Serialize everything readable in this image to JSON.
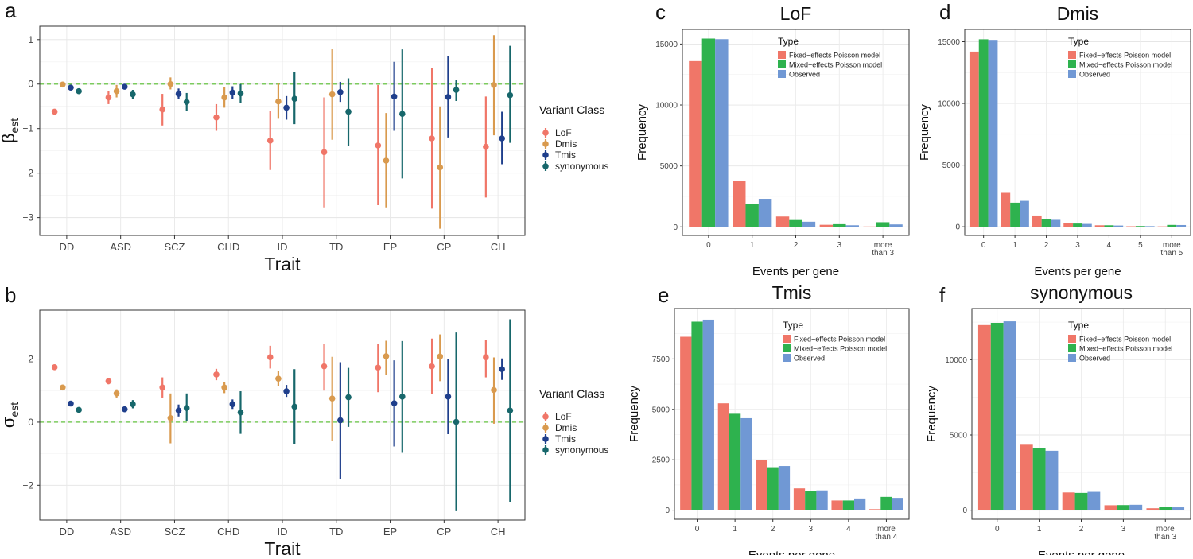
{
  "figure": {
    "colors": {
      "LoF": "#F07668",
      "Dmis": "#D99A4E",
      "Tmis": "#1F3F8C",
      "synonymous": "#17676B",
      "fixed": "#F07668",
      "mixed": "#2EB24E",
      "observed": "#7098D4",
      "refline": "#7CCB5E"
    }
  },
  "chart_data": [
    {
      "id": "a",
      "panel_label": "a",
      "type": "scatter",
      "subtype": "dot-whisker",
      "ylabel_main": "β",
      "ylabel_sub": "est",
      "xlabel": "Trait",
      "categories": [
        "DD",
        "ASD",
        "SCZ",
        "CHD",
        "ID",
        "TD",
        "EP",
        "CP",
        "CH"
      ],
      "ylim": [
        -3.4,
        1.3
      ],
      "yticks": [
        -3,
        -2,
        -1,
        0,
        1
      ],
      "ytick_labels": [
        "−3",
        "−2",
        "−1",
        "0",
        "1"
      ],
      "reference_line": 0,
      "legend": {
        "title": "Variant Class",
        "position": "right",
        "entries": [
          "LoF",
          "Dmis",
          "Tmis",
          "synonymous"
        ]
      },
      "series": [
        {
          "name": "LoF",
          "estimate": [
            -0.62,
            -0.3,
            -0.57,
            -0.75,
            -1.27,
            -1.53,
            -1.38,
            -1.22,
            -1.41
          ],
          "lower": [
            -0.68,
            -0.45,
            -0.93,
            -1.05,
            -1.93,
            -2.77,
            -2.72,
            -2.8,
            -2.55
          ],
          "upper": [
            -0.56,
            -0.15,
            -0.22,
            -0.45,
            -0.6,
            -0.3,
            -0.02,
            0.37,
            -0.28
          ]
        },
        {
          "name": "Dmis",
          "estimate": [
            -0.01,
            -0.16,
            0.0,
            -0.3,
            -0.39,
            -0.23,
            -1.72,
            -1.87,
            -0.02
          ],
          "lower": [
            -0.05,
            -0.3,
            -0.12,
            -0.53,
            -0.78,
            -1.25,
            -2.77,
            -3.25,
            -1.15
          ],
          "upper": [
            0.03,
            -0.02,
            0.15,
            -0.07,
            0.03,
            0.79,
            -0.65,
            -0.5,
            1.1
          ]
        },
        {
          "name": "Tmis",
          "estimate": [
            -0.08,
            -0.06,
            -0.22,
            -0.19,
            -0.53,
            -0.18,
            -0.28,
            -0.29,
            -1.22
          ],
          "lower": [
            -0.14,
            -0.12,
            -0.33,
            -0.33,
            -0.8,
            -0.4,
            -1.05,
            -1.2,
            -1.8
          ],
          "upper": [
            -0.02,
            0.0,
            -0.1,
            -0.05,
            -0.27,
            0.05,
            0.5,
            0.63,
            -0.62
          ]
        },
        {
          "name": "synonymous",
          "estimate": [
            -0.16,
            -0.23,
            -0.4,
            -0.21,
            -0.33,
            -0.62,
            -0.67,
            -0.13,
            -0.25
          ],
          "lower": [
            -0.21,
            -0.33,
            -0.6,
            -0.42,
            -0.9,
            -1.38,
            -2.12,
            -0.38,
            -1.32
          ],
          "upper": [
            -0.11,
            -0.13,
            -0.2,
            0.0,
            0.27,
            0.13,
            0.78,
            0.1,
            0.86
          ]
        }
      ]
    },
    {
      "id": "b",
      "panel_label": "b",
      "type": "scatter",
      "subtype": "dot-whisker",
      "ylabel_main": "σ",
      "ylabel_sub": "est",
      "xlabel": "Trait",
      "categories": [
        "DD",
        "ASD",
        "SCZ",
        "CHD",
        "ID",
        "TD",
        "EP",
        "CP",
        "CH"
      ],
      "ylim": [
        -3.1,
        3.55
      ],
      "yticks": [
        -2,
        0,
        2
      ],
      "ytick_labels": [
        "−2",
        "0",
        "2"
      ],
      "reference_line": 0,
      "legend": {
        "title": "Variant Class",
        "position": "right",
        "entries": [
          "LoF",
          "Dmis",
          "Tmis",
          "synonymous"
        ]
      },
      "series": [
        {
          "name": "LoF",
          "estimate": [
            1.74,
            1.3,
            1.1,
            1.51,
            2.06,
            1.77,
            1.73,
            1.77,
            2.06
          ],
          "lower": [
            1.68,
            1.2,
            0.78,
            1.33,
            1.7,
            1.0,
            0.95,
            0.88,
            1.42
          ],
          "upper": [
            1.8,
            1.4,
            1.42,
            1.69,
            2.42,
            2.48,
            2.48,
            2.65,
            2.6
          ]
        },
        {
          "name": "Dmis",
          "estimate": [
            1.1,
            0.91,
            0.13,
            1.1,
            1.38,
            0.75,
            2.09,
            2.08,
            1.02
          ],
          "lower": [
            1.02,
            0.78,
            -0.67,
            0.92,
            1.15,
            -0.58,
            1.5,
            1.3,
            -0.05
          ],
          "upper": [
            1.18,
            1.04,
            0.91,
            1.28,
            1.62,
            2.07,
            2.58,
            2.78,
            2.05
          ]
        },
        {
          "name": "Tmis",
          "estimate": [
            0.59,
            0.41,
            0.37,
            0.57,
            0.98,
            0.06,
            0.6,
            0.81,
            1.68
          ],
          "lower": [
            0.53,
            0.34,
            0.18,
            0.42,
            0.8,
            -1.8,
            -0.77,
            -0.38,
            1.34
          ],
          "upper": [
            0.65,
            0.48,
            0.56,
            0.72,
            1.18,
            1.9,
            1.96,
            2.0,
            2.02
          ]
        },
        {
          "name": "synonymous",
          "estimate": [
            0.39,
            0.57,
            0.45,
            0.31,
            0.49,
            0.79,
            0.81,
            0.01,
            0.37
          ],
          "lower": [
            0.33,
            0.44,
            0.03,
            -0.37,
            -0.69,
            -0.15,
            -0.97,
            -2.82,
            -2.52
          ],
          "upper": [
            0.45,
            0.7,
            0.91,
            0.98,
            1.68,
            1.72,
            2.57,
            2.84,
            3.26
          ]
        }
      ]
    },
    {
      "id": "c",
      "panel_label": "c",
      "type": "bar",
      "title": "LoF",
      "xlabel": "Events per gene",
      "ylabel": "Frequency",
      "categories": [
        "0",
        "1",
        "2",
        "3",
        "more\nthan 3"
      ],
      "ylim": [
        -700,
        16200
      ],
      "yticks": [
        0,
        5000,
        10000,
        15000
      ],
      "legend": {
        "title": "Type",
        "position": "top-right",
        "entries": [
          "Fixed−effects Poisson model",
          "Mixed−effects Poisson model",
          "Observed"
        ]
      },
      "series": [
        {
          "name": "Fixed−effects Poisson model",
          "values": [
            13600,
            3750,
            850,
            170,
            30
          ]
        },
        {
          "name": "Mixed−effects Poisson model",
          "values": [
            15450,
            1850,
            560,
            220,
            380
          ]
        },
        {
          "name": "Observed",
          "values": [
            15400,
            2300,
            420,
            130,
            200
          ]
        }
      ]
    },
    {
      "id": "d",
      "panel_label": "d",
      "type": "bar",
      "title": "Dmis",
      "xlabel": "Events per gene",
      "ylabel": "Frequency",
      "categories": [
        "0",
        "1",
        "2",
        "3",
        "4",
        "5",
        "more\nthan 5"
      ],
      "ylim": [
        -700,
        16000
      ],
      "yticks": [
        0,
        5000,
        10000,
        15000
      ],
      "legend": {
        "title": "Type",
        "position": "top-right",
        "entries": [
          "Fixed−effects Poisson model",
          "Mixed−effects Poisson model",
          "Observed"
        ]
      },
      "series": [
        {
          "name": "Fixed−effects Poisson model",
          "values": [
            14200,
            2750,
            850,
            330,
            120,
            40,
            30
          ]
        },
        {
          "name": "Mixed−effects Poisson model",
          "values": [
            15200,
            1950,
            620,
            260,
            120,
            60,
            150
          ]
        },
        {
          "name": "Observed",
          "values": [
            15150,
            2100,
            560,
            230,
            100,
            50,
            140
          ]
        }
      ]
    },
    {
      "id": "e",
      "panel_label": "e",
      "type": "bar",
      "title": "Tmis",
      "xlabel": "Events per gene",
      "ylabel": "Frequency",
      "categories": [
        "0",
        "1",
        "2",
        "3",
        "4",
        "more\nthan 4"
      ],
      "ylim": [
        -450,
        10000
      ],
      "yticks": [
        0,
        2500,
        5000,
        7500
      ],
      "legend": {
        "title": "Type",
        "position": "top-right",
        "entries": [
          "Fixed−effects Poisson model",
          "Mixed−effects Poisson model",
          "Observed"
        ]
      },
      "series": [
        {
          "name": "Fixed−effects Poisson model",
          "values": [
            8600,
            5300,
            2480,
            1080,
            480,
            50
          ]
        },
        {
          "name": "Mixed−effects Poisson model",
          "values": [
            9350,
            4780,
            2130,
            960,
            480,
            660
          ]
        },
        {
          "name": "Observed",
          "values": [
            9450,
            4560,
            2190,
            980,
            580,
            610
          ]
        }
      ]
    },
    {
      "id": "f",
      "panel_label": "f",
      "type": "bar",
      "title": "synonymous",
      "xlabel": "Events per gene",
      "ylabel": "Frequency",
      "categories": [
        "0",
        "1",
        "2",
        "3",
        "more\nthan 3"
      ],
      "ylim": [
        -600,
        13400
      ],
      "yticks": [
        0,
        5000,
        10000
      ],
      "legend": {
        "title": "Type",
        "position": "top-right",
        "entries": [
          "Fixed−effects Poisson model",
          "Mixed−effects Poisson model",
          "Observed"
        ]
      },
      "series": [
        {
          "name": "Fixed−effects Poisson model",
          "values": [
            12300,
            4350,
            1180,
            330,
            130
          ]
        },
        {
          "name": "Mixed−effects Poisson model",
          "values": [
            12450,
            4120,
            1150,
            340,
            200
          ]
        },
        {
          "name": "Observed",
          "values": [
            12550,
            3950,
            1220,
            360,
            190
          ]
        }
      ]
    }
  ]
}
